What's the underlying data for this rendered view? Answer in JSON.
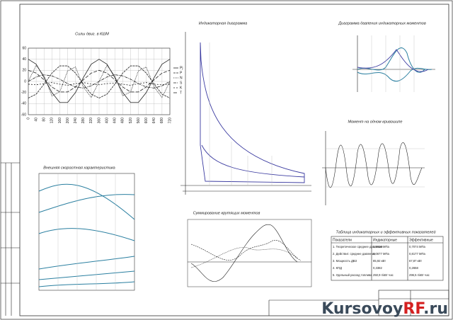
{
  "force_chart": {
    "type": "line",
    "title": "Силы двиг. в КШМ",
    "x": [
      0,
      40,
      80,
      120,
      160,
      200,
      240,
      280,
      320,
      360,
      400,
      440,
      480,
      520,
      560,
      600,
      640,
      680,
      720
    ],
    "xlim": [
      0,
      720
    ],
    "xticks": [
      0,
      40,
      80,
      120,
      160,
      200,
      240,
      280,
      320,
      360,
      400,
      440,
      480,
      520,
      560,
      600,
      640,
      680,
      720
    ],
    "ylim": [
      -60,
      60
    ],
    "yticks": [
      -60,
      -40,
      -20,
      0,
      20,
      40,
      60
    ],
    "grid": true,
    "series": [
      {
        "name": "Pj",
        "color": "#222222",
        "values": [
          40,
          31,
          7,
          -20,
          -38,
          -38,
          -20,
          7,
          31,
          40,
          31,
          7,
          -20,
          -38,
          -38,
          -20,
          7,
          31,
          40
        ]
      },
      {
        "name": "P",
        "color": "#222222",
        "values": [
          -30,
          -23,
          -5,
          15,
          28,
          28,
          15,
          -5,
          -23,
          -30,
          -23,
          -5,
          15,
          28,
          28,
          15,
          -5,
          -23,
          -30
        ]
      },
      {
        "name": "N",
        "color": "#222222",
        "values": [
          0,
          29,
          10,
          -26,
          -19,
          19,
          26,
          -10,
          -29,
          0,
          29,
          10,
          -26,
          -19,
          19,
          26,
          -10,
          -29,
          0
        ]
      },
      {
        "name": "S",
        "color": "#222222",
        "values": [
          0,
          8,
          12,
          10,
          4,
          -4,
          -10,
          -12,
          -8,
          0,
          8,
          12,
          10,
          4,
          -4,
          -10,
          -12,
          -8,
          0
        ]
      },
      {
        "name": "K",
        "color": "#222222",
        "values": [
          -5,
          -6,
          -4,
          -2,
          -5,
          -7,
          -4,
          -2,
          -5,
          -6,
          -4,
          -3,
          -5,
          -7,
          -4,
          -2,
          -5,
          -6,
          -5
        ]
      },
      {
        "name": "T",
        "color": "#222222",
        "values": [
          20,
          15,
          3,
          -10,
          -19,
          -19,
          -10,
          3,
          15,
          20,
          15,
          3,
          -10,
          -19,
          -19,
          -10,
          3,
          15,
          20
        ]
      }
    ]
  },
  "titles": {
    "indicator": "Индикаторная диаграмма",
    "moments": "Диаграмма давления индикаторных моментов",
    "crank": "Момент на одном кривошипе",
    "characteristic": "Внешняя скоростная характеристика",
    "sum": "Суммирование крутящих моментов"
  },
  "table": {
    "title": "Таблица индикаторных и эффективных показателей",
    "header": [
      "Показатели",
      "Индикаторные",
      "Эффективные"
    ],
    "rows": [
      [
        "1. Теоретическое среднее давление",
        "1,9618 МПа",
        "0,7074 МПа"
      ],
      [
        "2. Действит. среднее давление",
        "1,0677 МПа",
        "0,8177 МПа"
      ],
      [
        "3. Мощность ДВЗ",
        "85,92 кВт",
        "67,87 кВт"
      ],
      [
        "4. КПД",
        "0,3382",
        "0,2658"
      ],
      [
        "5. Удельный расход топлива",
        "250,9 г/кВт·час",
        "296,5 г/кВт·час"
      ]
    ]
  },
  "watermark": [
    "Kursovoy",
    "RF",
    ".ru"
  ]
}
